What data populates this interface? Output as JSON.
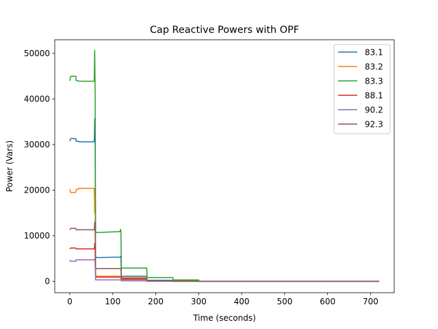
{
  "chart_data": {
    "type": "line",
    "title": "Cap Reactive Powers with OPF",
    "xlabel": "Time (seconds)",
    "ylabel": "Power (Vars)",
    "xlim": [
      -35,
      755
    ],
    "ylim": [
      -2500,
      53000
    ],
    "xticks": [
      0,
      100,
      200,
      300,
      400,
      500,
      600,
      700
    ],
    "yticks": [
      0,
      10000,
      20000,
      30000,
      40000,
      50000
    ],
    "grid": false,
    "legend_position": "top-right",
    "series": [
      {
        "name": "83.1",
        "color": "#1f77b4",
        "points": [
          [
            0,
            30700
          ],
          [
            2,
            31300
          ],
          [
            14,
            31300
          ],
          [
            15,
            30700
          ],
          [
            20,
            30700
          ],
          [
            21,
            30600
          ],
          [
            57,
            30600
          ],
          [
            58,
            35700
          ],
          [
            59,
            30000
          ],
          [
            60,
            5300
          ],
          [
            62,
            5300
          ],
          [
            63,
            5200
          ],
          [
            117,
            5300
          ],
          [
            118,
            5500
          ],
          [
            119,
            5300
          ],
          [
            120,
            1100
          ],
          [
            179,
            1100
          ],
          [
            180,
            200
          ],
          [
            240,
            200
          ],
          [
            241,
            100
          ],
          [
            300,
            100
          ],
          [
            301,
            0
          ],
          [
            720,
            0
          ]
        ]
      },
      {
        "name": "83.2",
        "color": "#ff7f0e",
        "points": [
          [
            0,
            20200
          ],
          [
            2,
            19500
          ],
          [
            14,
            19500
          ],
          [
            15,
            20200
          ],
          [
            20,
            20200
          ],
          [
            21,
            20400
          ],
          [
            57,
            20400
          ],
          [
            58,
            15000
          ],
          [
            59,
            19000
          ],
          [
            60,
            1200
          ],
          [
            62,
            1200
          ],
          [
            63,
            1100
          ],
          [
            119,
            1100
          ],
          [
            120,
            800
          ],
          [
            179,
            800
          ],
          [
            180,
            100
          ],
          [
            240,
            100
          ],
          [
            241,
            50
          ],
          [
            300,
            50
          ],
          [
            301,
            0
          ],
          [
            720,
            0
          ]
        ]
      },
      {
        "name": "83.3",
        "color": "#2ca02c",
        "points": [
          [
            0,
            44000
          ],
          [
            2,
            45000
          ],
          [
            14,
            45000
          ],
          [
            15,
            44000
          ],
          [
            20,
            44000
          ],
          [
            21,
            43900
          ],
          [
            57,
            43900
          ],
          [
            58,
            50700
          ],
          [
            59,
            42000
          ],
          [
            60,
            10800
          ],
          [
            62,
            10800
          ],
          [
            63,
            10700
          ],
          [
            117,
            10900
          ],
          [
            118,
            11400
          ],
          [
            119,
            10900
          ],
          [
            120,
            2900
          ],
          [
            179,
            2900
          ],
          [
            180,
            800
          ],
          [
            240,
            800
          ],
          [
            241,
            300
          ],
          [
            300,
            300
          ],
          [
            301,
            0
          ],
          [
            720,
            0
          ]
        ]
      },
      {
        "name": "88.1",
        "color": "#d62728",
        "points": [
          [
            0,
            7100
          ],
          [
            2,
            7300
          ],
          [
            14,
            7300
          ],
          [
            15,
            7100
          ],
          [
            57,
            7100
          ],
          [
            58,
            8300
          ],
          [
            59,
            6900
          ],
          [
            60,
            900
          ],
          [
            119,
            900
          ],
          [
            120,
            400
          ],
          [
            179,
            400
          ],
          [
            180,
            100
          ],
          [
            240,
            100
          ],
          [
            241,
            0
          ],
          [
            720,
            0
          ]
        ]
      },
      {
        "name": "90.2",
        "color": "#9467bd",
        "points": [
          [
            0,
            4700
          ],
          [
            2,
            4400
          ],
          [
            14,
            4400
          ],
          [
            15,
            4700
          ],
          [
            57,
            4700
          ],
          [
            58,
            4900
          ],
          [
            59,
            4600
          ],
          [
            60,
            300
          ],
          [
            119,
            300
          ],
          [
            120,
            100
          ],
          [
            179,
            100
          ],
          [
            180,
            0
          ],
          [
            720,
            0
          ]
        ]
      },
      {
        "name": "92.3",
        "color": "#8c564b",
        "points": [
          [
            0,
            11300
          ],
          [
            2,
            11600
          ],
          [
            14,
            11600
          ],
          [
            15,
            11300
          ],
          [
            57,
            11300
          ],
          [
            58,
            13000
          ],
          [
            59,
            10800
          ],
          [
            60,
            2800
          ],
          [
            119,
            2800
          ],
          [
            120,
            600
          ],
          [
            179,
            600
          ],
          [
            180,
            100
          ],
          [
            240,
            100
          ],
          [
            241,
            0
          ],
          [
            720,
            0
          ]
        ]
      }
    ]
  }
}
